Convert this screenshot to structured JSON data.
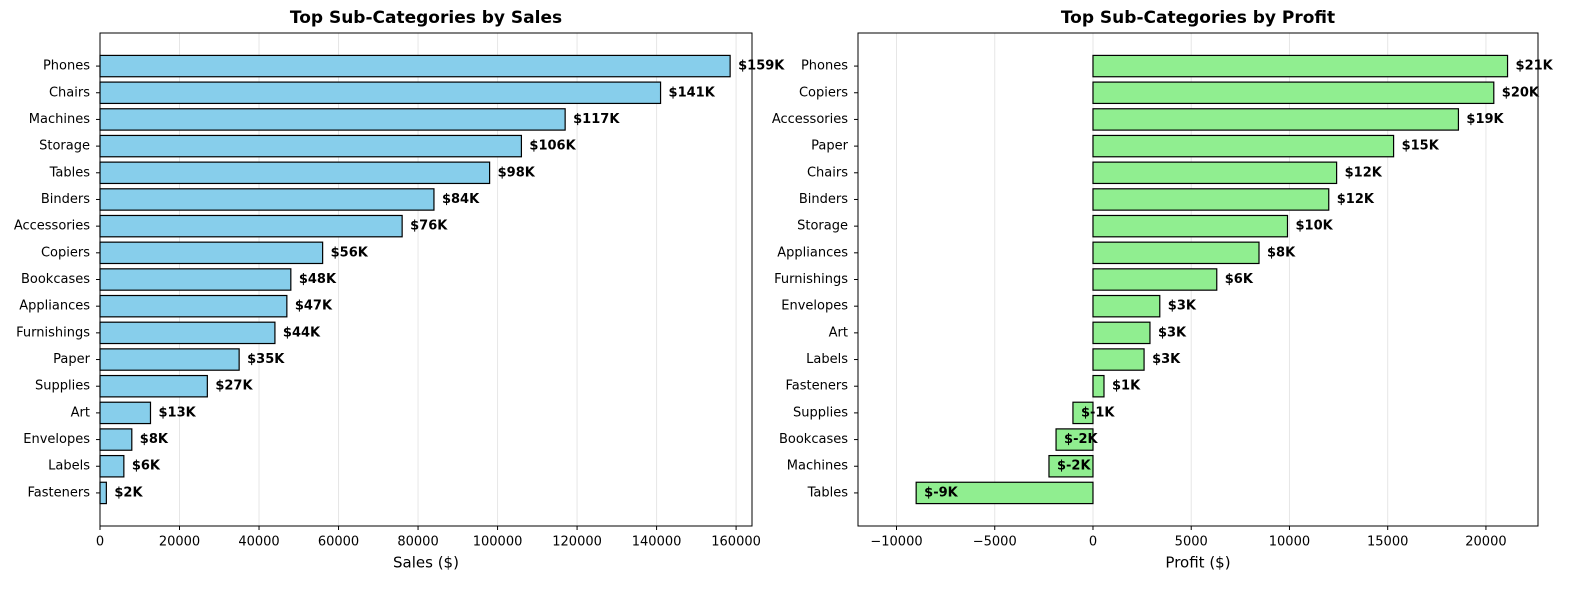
{
  "chart_data": [
    {
      "type": "barh",
      "title": "Top Sub-Categories by Sales",
      "xlabel": "Sales ($)",
      "color": "#87ceeb",
      "grid": true,
      "categories": [
        "Phones",
        "Chairs",
        "Machines",
        "Storage",
        "Tables",
        "Binders",
        "Accessories",
        "Copiers",
        "Bookcases",
        "Appliances",
        "Furnishings",
        "Paper",
        "Supplies",
        "Art",
        "Envelopes",
        "Labels",
        "Fasteners"
      ],
      "values": [
        158500,
        141000,
        117000,
        106000,
        98000,
        84000,
        76000,
        56000,
        48000,
        47000,
        44000,
        35000,
        27000,
        12700,
        8000,
        6000,
        1600
      ],
      "value_labels": [
        "$159K",
        "$141K",
        "$117K",
        "$106K",
        "$98K",
        "$84K",
        "$76K",
        "$56K",
        "$48K",
        "$47K",
        "$44K",
        "$35K",
        "$27K",
        "$13K",
        "$8K",
        "$6K",
        "$2K"
      ],
      "xlim": [
        0,
        164000
      ],
      "xticks": [
        0,
        20000,
        40000,
        60000,
        80000,
        100000,
        120000,
        140000,
        160000
      ]
    },
    {
      "type": "barh",
      "title": "Top Sub-Categories by Profit",
      "xlabel": "Profit ($)",
      "color": "#90ee90",
      "grid": true,
      "categories": [
        "Phones",
        "Copiers",
        "Accessories",
        "Paper",
        "Chairs",
        "Binders",
        "Storage",
        "Appliances",
        "Furnishings",
        "Envelopes",
        "Art",
        "Labels",
        "Fasteners",
        "Supplies",
        "Bookcases",
        "Machines",
        "Tables"
      ],
      "values": [
        21100,
        20400,
        18600,
        15300,
        12400,
        12000,
        9900,
        8450,
        6300,
        3400,
        2900,
        2600,
        560,
        -1020,
        -1880,
        -2240,
        -9000
      ],
      "value_labels": [
        "$21K",
        "$20K",
        "$19K",
        "$15K",
        "$12K",
        "$12K",
        "$10K",
        "$8K",
        "$6K",
        "$3K",
        "$3K",
        "$3K",
        "$1K",
        "$-1K",
        "$-2K",
        "$-2K",
        "$-9K"
      ],
      "xlim": [
        -11960,
        22650
      ],
      "xticks": [
        {
          "value": -10000,
          "label": "−10000"
        },
        {
          "value": -5000,
          "label": "−5000"
        },
        0,
        5000,
        10000,
        15000,
        20000
      ]
    }
  ]
}
